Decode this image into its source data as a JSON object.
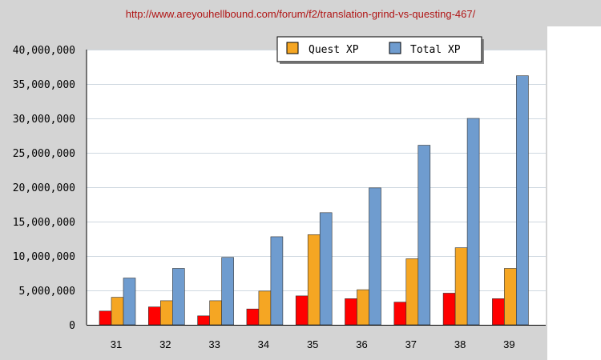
{
  "url": "http://www.areyouhellbound.com/forum/f2/translation-grind-vs-questing-467/",
  "colors": {
    "background": "#d4d4d4",
    "plot_area": "#ffffff",
    "grid": "#cfd8e0",
    "series_unlabeled": "#ff0000",
    "quest_xp": "#f5a623",
    "total_xp": "#6f9ccf",
    "url_text": "#b01515"
  },
  "chart_data": {
    "type": "bar",
    "categories": [
      "31",
      "32",
      "33",
      "34",
      "35",
      "36",
      "37",
      "38",
      "39"
    ],
    "series": [
      {
        "color": "#ff0000",
        "values": [
          2000000,
          2600000,
          1300000,
          2300000,
          4200000,
          3800000,
          3300000,
          4600000,
          3800000
        ]
      },
      {
        "name": "Quest XP",
        "color": "#f5a623",
        "values": [
          4000000,
          3500000,
          3500000,
          4900000,
          13100000,
          5100000,
          9600000,
          11200000,
          8200000
        ]
      },
      {
        "name": "Total XP",
        "color": "#6f9ccf",
        "values": [
          6800000,
          8200000,
          9800000,
          12800000,
          16300000,
          19900000,
          26100000,
          30000000,
          36200000
        ]
      }
    ],
    "yticks": [
      "0",
      "5,000,000",
      "10,000,000",
      "15,000,000",
      "20,000,000",
      "25,000,000",
      "30,000,000",
      "35,000,000",
      "40,000,000"
    ],
    "ylim": [
      0,
      40000000
    ],
    "grid": true,
    "legend": {
      "position": "top-right",
      "entries": [
        "Quest XP",
        "Total XP"
      ]
    }
  }
}
